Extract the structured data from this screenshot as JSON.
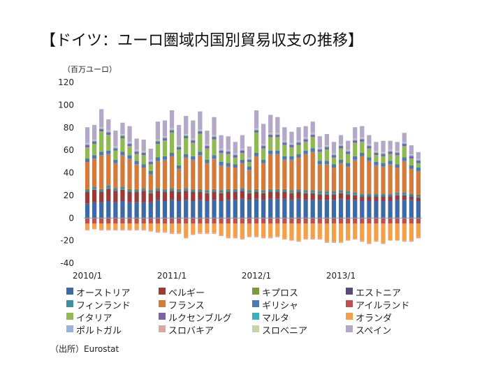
{
  "title": "【ドイツ：ユーロ圏域内国別貿易収支の推移】",
  "unit_label": "（百万ユーロ）",
  "source": "（出所）Eurostat",
  "chart_data": {
    "type": "bar",
    "stacked": true,
    "y_ticks": [
      "120",
      "100",
      "80",
      "60",
      "40",
      "20",
      "0",
      "-20",
      "-40"
    ],
    "ylim": [
      -40,
      120
    ],
    "x_tick_labels": [
      "2010/1",
      "2011/1",
      "2012/1",
      "2013/1"
    ],
    "x_tick_months": [
      0,
      12,
      24,
      36
    ],
    "months_count": 48,
    "grid": false,
    "legend_position": "bottom",
    "series": [
      {
        "name": "オーストリア",
        "color": "#3b6aa6",
        "values": [
          13,
          14,
          14,
          15,
          14,
          15,
          14,
          14,
          14,
          14,
          16,
          15,
          16,
          15,
          16,
          15,
          16,
          15,
          16,
          15,
          16,
          16,
          17,
          16,
          17,
          16,
          17,
          17,
          17,
          16,
          17,
          16,
          16,
          16,
          16,
          16,
          17,
          16,
          16,
          15,
          15,
          15,
          15,
          15,
          16,
          16,
          16,
          15
        ]
      },
      {
        "name": "ベルギー",
        "color": "#9b3a38",
        "values": [
          10,
          11,
          9,
          11,
          10,
          10,
          9,
          9,
          10,
          8,
          8,
          8,
          8,
          8,
          8,
          8,
          7,
          7,
          7,
          7,
          7,
          7,
          7,
          6,
          6,
          6,
          6,
          6,
          6,
          6,
          6,
          6,
          6,
          5,
          5,
          5,
          5,
          5,
          4,
          4,
          4,
          4,
          4,
          4,
          4,
          4,
          3,
          3
        ]
      },
      {
        "name": "キプロス",
        "color": "#7b9a3c",
        "values": [
          0.3,
          0.3,
          0.3,
          0.3,
          0.3,
          0.3,
          0.3,
          0.3,
          0.3,
          0.3,
          0.3,
          0.3,
          0.3,
          0.3,
          0.3,
          0.3,
          0.3,
          0.3,
          0.3,
          0.3,
          0.3,
          0.3,
          0.3,
          0.3,
          0.3,
          0.3,
          0.3,
          0.3,
          0.3,
          0.3,
          0.3,
          0.3,
          0.3,
          0.3,
          0.3,
          0.3,
          0.3,
          0.3,
          0.3,
          0.3,
          0.3,
          0.3,
          0.3,
          0.3,
          0.3,
          0.3,
          0.3,
          0.3
        ]
      },
      {
        "name": "エストニア",
        "color": "#5b4a7c",
        "values": [
          0.3,
          0.3,
          0.3,
          0.3,
          0.3,
          0.3,
          0.3,
          0.3,
          0.3,
          0.3,
          0.3,
          0.3,
          0.3,
          0.3,
          0.3,
          0.3,
          0.3,
          0.3,
          0.3,
          0.3,
          0.3,
          0.3,
          0.3,
          0.3,
          0.3,
          0.3,
          0.3,
          0.3,
          0.3,
          0.3,
          0.3,
          0.3,
          0.3,
          0.3,
          0.3,
          0.3,
          0.3,
          0.3,
          0.3,
          0.3,
          0.3,
          0.3,
          0.3,
          0.3,
          0.3,
          0.3,
          0.3,
          0.3
        ]
      },
      {
        "name": "フィンランド",
        "color": "#3c8fa6",
        "values": [
          2,
          2,
          2,
          2,
          2,
          2,
          2,
          2,
          2,
          2,
          2,
          2,
          2,
          2,
          2,
          2,
          2,
          2,
          2,
          2,
          2,
          2,
          2,
          2,
          2,
          2,
          2,
          2,
          2,
          2,
          2,
          2,
          2,
          2,
          2,
          2,
          2,
          2,
          2,
          2,
          2,
          2,
          2,
          2,
          2,
          2,
          2,
          2
        ]
      },
      {
        "name": "フランス",
        "color": "#d47b3c",
        "values": [
          24,
          25,
          30,
          28,
          22,
          28,
          27,
          22,
          18,
          14,
          24,
          26,
          28,
          18,
          27,
          26,
          30,
          24,
          27,
          22,
          20,
          19,
          22,
          18,
          29,
          24,
          31,
          31,
          26,
          27,
          28,
          32,
          34,
          24,
          24,
          21,
          24,
          22,
          29,
          33,
          29,
          25,
          24,
          26,
          22,
          28,
          22,
          21
        ]
      },
      {
        "name": "ギリシャ",
        "color": "#4a78b8",
        "values": [
          3,
          3,
          3,
          3,
          3,
          3,
          3,
          3,
          3,
          3,
          3,
          3,
          3,
          3,
          3,
          3,
          3,
          3,
          3,
          3,
          3,
          3,
          3,
          3,
          3,
          3,
          3,
          3,
          3,
          3,
          3,
          3,
          3,
          3,
          3,
          3,
          3,
          3,
          3,
          3,
          3,
          3,
          3,
          3,
          3,
          3,
          3,
          3
        ]
      },
      {
        "name": "アイルランド",
        "color": "#c0504d",
        "values": [
          -5,
          -5,
          -5,
          -5,
          -5,
          -5,
          -5,
          -5,
          -5,
          -5,
          -5,
          -5,
          -5,
          -5,
          -5,
          -5,
          -5,
          -5,
          -5,
          -5,
          -5,
          -5,
          -5,
          -5,
          -5,
          -5,
          -5,
          -5,
          -5,
          -5,
          -5,
          -5,
          -5,
          -5,
          -5,
          -5,
          -5,
          -5,
          -5,
          -5,
          -5,
          -5,
          -5,
          -5,
          -5,
          -5,
          -5,
          -5
        ]
      },
      {
        "name": "イタリア",
        "color": "#8fba52",
        "values": [
          10,
          10,
          18,
          14,
          8,
          12,
          8,
          6,
          8,
          6,
          12,
          14,
          18,
          14,
          14,
          12,
          16,
          10,
          14,
          8,
          8,
          6,
          6,
          4,
          18,
          10,
          12,
          12,
          10,
          8,
          8,
          8,
          10,
          8,
          10,
          6,
          10,
          8,
          12,
          10,
          8,
          6,
          6,
          6,
          8,
          10,
          6,
          4
        ]
      },
      {
        "name": "ルクセンブルグ",
        "color": "#7c63a6",
        "values": [
          2,
          2,
          2,
          2,
          2,
          2,
          2,
          2,
          2,
          2,
          2,
          2,
          2,
          2,
          2,
          2,
          2,
          2,
          2,
          2,
          2,
          2,
          2,
          2,
          2,
          2,
          2,
          2,
          2,
          2,
          2,
          2,
          2,
          2,
          2,
          2,
          2,
          2,
          2,
          2,
          2,
          2,
          2,
          2,
          2,
          2,
          2,
          2
        ]
      },
      {
        "name": "マルタ",
        "color": "#3cb0c0",
        "values": [
          0.2,
          0.2,
          0.2,
          0.2,
          0.2,
          0.2,
          0.2,
          0.2,
          0.2,
          0.2,
          0.2,
          0.2,
          0.2,
          0.2,
          0.2,
          0.2,
          0.2,
          0.2,
          0.2,
          0.2,
          0.2,
          0.2,
          0.2,
          0.2,
          0.2,
          0.2,
          0.2,
          0.2,
          0.2,
          0.2,
          0.2,
          0.2,
          0.2,
          0.2,
          0.2,
          0.2,
          0.2,
          0.2,
          0.2,
          0.2,
          0.2,
          0.2,
          0.2,
          0.2,
          0.2,
          0.2,
          0.2,
          0.2
        ]
      },
      {
        "name": "オランダ",
        "color": "#f4a04b",
        "values": [
          -5,
          -4,
          -5,
          -5,
          -5,
          -5,
          -5,
          -5,
          -5,
          -6,
          -7,
          -7,
          -8,
          -8,
          -12,
          -9,
          -8,
          -8,
          -8,
          -10,
          -12,
          -12,
          -13,
          -11,
          -11,
          -12,
          -12,
          -11,
          -13,
          -14,
          -15,
          -13,
          -13,
          -13,
          -16,
          -16,
          -16,
          -14,
          -13,
          -15,
          -17,
          -15,
          -17,
          -14,
          -14,
          -15,
          -15,
          -12
        ]
      },
      {
        "name": "ポルトガル",
        "color": "#9ab4d8",
        "values": [
          1,
          1,
          1,
          1,
          1,
          1,
          1,
          1,
          1,
          1,
          1,
          1,
          1,
          1,
          1,
          1,
          1,
          1,
          1,
          1,
          1,
          1,
          1,
          1,
          1,
          1,
          1,
          1,
          1,
          1,
          1,
          1,
          1,
          1,
          1,
          1,
          1,
          1,
          1,
          1,
          1,
          1,
          1,
          1,
          1,
          1,
          1,
          1
        ]
      },
      {
        "name": "スロバキア",
        "color": "#d8a8a6",
        "values": [
          -1,
          -1,
          -1,
          -1,
          -1,
          -1,
          -1,
          -1,
          -1,
          -1,
          -1,
          -1,
          -1,
          -1,
          -1,
          -1,
          -1,
          -1,
          -1,
          -1,
          -1,
          -1,
          -1,
          -1,
          -1,
          -1,
          -1,
          -1,
          -1,
          -1,
          -1,
          -1,
          -1,
          -1,
          -1,
          -1,
          -1,
          -1,
          -1,
          -1,
          -1,
          -1,
          -1,
          -1,
          -1,
          -1,
          -1,
          -1
        ]
      },
      {
        "name": "スロベニア",
        "color": "#c4d6a8",
        "values": [
          0.5,
          0.5,
          0.5,
          0.5,
          0.5,
          0.5,
          0.5,
          0.5,
          0.5,
          0.5,
          0.5,
          0.5,
          0.5,
          0.5,
          0.5,
          0.5,
          0.5,
          0.5,
          0.5,
          0.5,
          0.5,
          0.5,
          0.5,
          0.5,
          0.5,
          0.5,
          0.5,
          0.5,
          0.5,
          0.5,
          0.5,
          0.5,
          0.5,
          0.5,
          0.5,
          0.5,
          0.5,
          0.5,
          0.5,
          0.5,
          0.5,
          0.5,
          0.5,
          0.5,
          0.5,
          0.5,
          0.5,
          0.5
        ]
      },
      {
        "name": "スペイン",
        "color": "#b3a8c8",
        "values": [
          14,
          13,
          16,
          10,
          14,
          10,
          14,
          10,
          10,
          10,
          16,
          14,
          16,
          18,
          16,
          16,
          16,
          12,
          16,
          12,
          12,
          10,
          12,
          10,
          16,
          18,
          16,
          14,
          12,
          10,
          12,
          10,
          10,
          10,
          10,
          10,
          8,
          8,
          10,
          10,
          8,
          8,
          10,
          8,
          8,
          8,
          8,
          6
        ]
      }
    ]
  }
}
